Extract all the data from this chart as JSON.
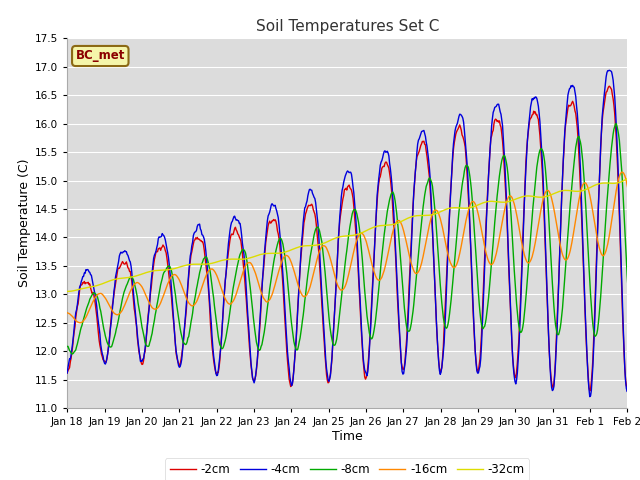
{
  "title": "Soil Temperatures Set C",
  "xlabel": "Time",
  "ylabel": "Soil Temperature (C)",
  "ylim": [
    11.0,
    17.5
  ],
  "plot_bg_color": "#dcdcdc",
  "fig_bg_color": "#ffffff",
  "grid_color": "#ffffff",
  "legend_label": "BC_met",
  "legend_box_color": "#f5f5aa",
  "legend_box_edge": "#8B6914",
  "series_colors": {
    "-2cm": "#dd0000",
    "-4cm": "#0000dd",
    "-8cm": "#00aa00",
    "-16cm": "#ff8800",
    "-32cm": "#dddd00"
  },
  "series_linewidth": 1.0,
  "tick_labels": [
    "Jan 18",
    "Jan 19",
    "Jan 20",
    "Jan 21",
    "Jan 22",
    "Jan 23",
    "Jan 24",
    "Jan 25",
    "Jan 26",
    "Jan 27",
    "Jan 28",
    "Jan 29",
    "Jan 30",
    "Jan 31",
    "Feb 1",
    "Feb 2"
  ]
}
